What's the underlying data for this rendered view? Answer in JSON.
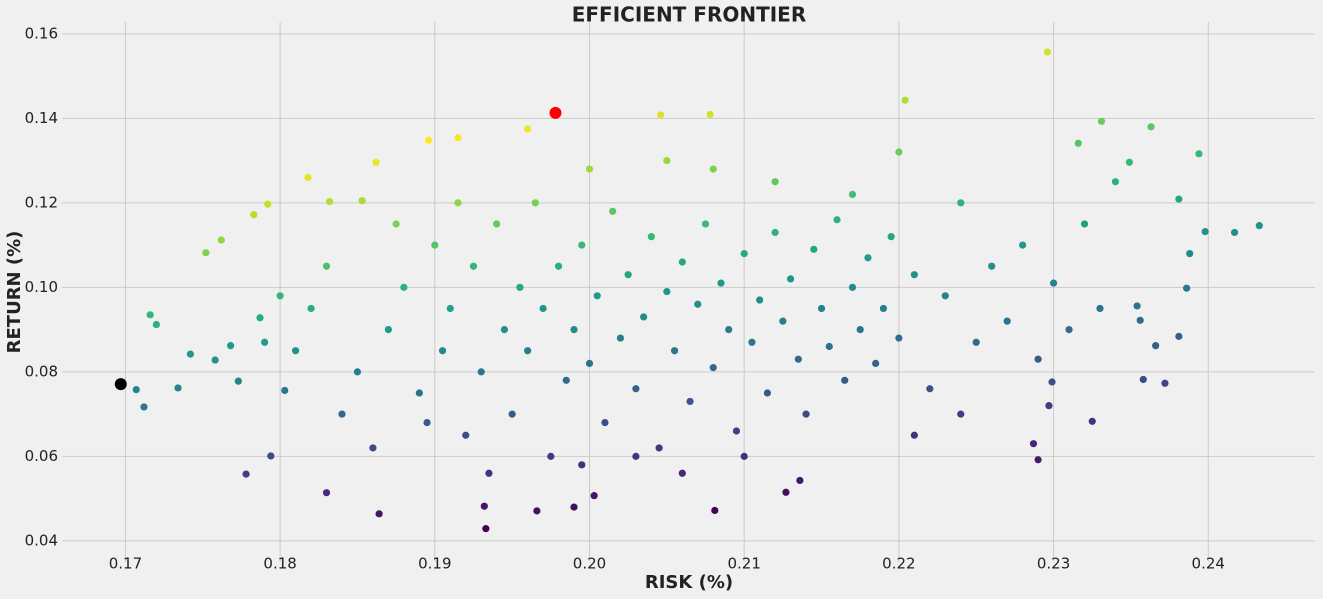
{
  "chart_data": {
    "type": "scatter",
    "title": "EFFICIENT FRONTIER",
    "x_label": "RISK (%)",
    "y_label": "RETURN (%)",
    "xlim": [
      0.1659,
      0.2469
    ],
    "ylim": [
      0.035,
      0.1628
    ],
    "xticks": [
      0.17,
      0.18,
      0.19,
      0.2,
      0.21,
      0.22,
      0.23,
      0.24
    ],
    "yticks": [
      0.04,
      0.06,
      0.08,
      0.1,
      0.12,
      0.14,
      0.16
    ],
    "xtick_labels": [
      "0.17",
      "0.18",
      "0.19",
      "0.20",
      "0.21",
      "0.22",
      "0.23",
      "0.24"
    ],
    "ytick_labels": [
      "0.04",
      "0.06",
      "0.08",
      "0.10",
      "0.12",
      "0.14",
      "0.16"
    ],
    "grid": true,
    "series": [
      {
        "colormap": "viridis",
        "x": [
          0.1707,
          0.1712,
          0.1716,
          0.172,
          0.1734,
          0.1742,
          0.1752,
          0.1758,
          0.1762,
          0.1768,
          0.1773,
          0.1778,
          0.1783,
          0.1792,
          0.1794,
          0.1787,
          0.1803,
          0.1818,
          0.183,
          0.1832,
          0.1862,
          0.1864,
          0.1853,
          0.1896,
          0.1915,
          0.1933,
          0.1932,
          0.196,
          0.1966,
          0.199,
          0.2003,
          0.2046,
          0.2078,
          0.2081,
          0.2127,
          0.2136,
          0.2204,
          0.2296,
          0.229,
          0.2287,
          0.2325,
          0.2331,
          0.2363,
          0.2394,
          0.2417,
          0.2433,
          0.2398,
          0.2381,
          0.2372,
          0.2358,
          0.2366,
          0.2381,
          0.2386,
          0.2388,
          0.2356,
          0.2354,
          0.2349,
          0.2316,
          0.2299,
          0.2297,
          0.185,
          0.187,
          0.188,
          0.189,
          0.19,
          0.1905,
          0.191,
          0.192,
          0.1925,
          0.193,
          0.194,
          0.1945,
          0.195,
          0.1955,
          0.196,
          0.1965,
          0.197,
          0.1975,
          0.198,
          0.1985,
          0.199,
          0.1995,
          0.2,
          0.2005,
          0.201,
          0.2015,
          0.202,
          0.2025,
          0.203,
          0.2035,
          0.204,
          0.2045,
          0.205,
          0.2055,
          0.206,
          0.2065,
          0.207,
          0.2075,
          0.208,
          0.2085,
          0.209,
          0.2095,
          0.21,
          0.2105,
          0.211,
          0.2115,
          0.212,
          0.2125,
          0.213,
          0.2135,
          0.214,
          0.2145,
          0.215,
          0.2155,
          0.216,
          0.2165,
          0.217,
          0.2175,
          0.218,
          0.2185,
          0.219,
          0.2195,
          0.22,
          0.221,
          0.222,
          0.223,
          0.224,
          0.225,
          0.226,
          0.227,
          0.228,
          0.229,
          0.23,
          0.231,
          0.232,
          0.233,
          0.234,
          0.181,
          0.182,
          0.183,
          0.184,
          0.18,
          0.179,
          0.186,
          0.1875,
          0.1895,
          0.1915,
          0.1935,
          0.2,
          0.205,
          0.208,
          0.212,
          0.217,
          0.221,
          0.224,
          0.22,
          0.1995,
          0.206,
          0.21,
          0.203
        ],
        "values": [
          0.0758,
          0.0717,
          0.0935,
          0.0912,
          0.0762,
          0.0842,
          0.1082,
          0.0828,
          0.1112,
          0.0862,
          0.0778,
          0.0558,
          0.1172,
          0.1197,
          0.0601,
          0.0928,
          0.0756,
          0.126,
          0.0514,
          0.1203,
          0.1296,
          0.0464,
          0.1205,
          0.1348,
          0.1354,
          0.0429,
          0.0482,
          0.1375,
          0.0471,
          0.048,
          0.0507,
          0.1408,
          0.1409,
          0.0472,
          0.0515,
          0.0543,
          0.1443,
          0.1557,
          0.0592,
          0.063,
          0.0683,
          0.1393,
          0.138,
          0.1316,
          0.113,
          0.1146,
          0.1132,
          0.1209,
          0.0773,
          0.0782,
          0.0862,
          0.0884,
          0.0998,
          0.108,
          0.0922,
          0.0956,
          0.1296,
          0.1341,
          0.0776,
          0.072,
          0.08,
          0.09,
          0.1,
          0.075,
          0.11,
          0.085,
          0.095,
          0.065,
          0.105,
          0.08,
          0.115,
          0.09,
          0.07,
          0.1,
          0.085,
          0.12,
          0.095,
          0.06,
          0.105,
          0.078,
          0.09,
          0.11,
          0.082,
          0.098,
          0.068,
          0.118,
          0.088,
          0.103,
          0.076,
          0.093,
          0.112,
          0.062,
          0.099,
          0.085,
          0.106,
          0.073,
          0.096,
          0.115,
          0.081,
          0.101,
          0.09,
          0.066,
          0.108,
          0.087,
          0.097,
          0.075,
          0.113,
          0.092,
          0.102,
          0.083,
          0.07,
          0.109,
          0.095,
          0.086,
          0.116,
          0.078,
          0.1,
          0.09,
          0.107,
          0.082,
          0.095,
          0.112,
          0.088,
          0.103,
          0.076,
          0.098,
          0.12,
          0.087,
          0.105,
          0.092,
          0.11,
          0.083,
          0.101,
          0.09,
          0.115,
          0.095,
          0.125,
          0.085,
          0.095,
          0.105,
          0.07,
          0.098,
          0.087,
          0.062,
          0.115,
          0.068,
          0.12,
          0.056,
          0.128,
          0.13,
          0.128,
          0.125,
          0.122,
          0.065,
          0.07,
          0.132,
          0.058,
          0.056,
          0.06,
          0.06
        ]
      },
      {
        "color": "#ff0000",
        "x": [
          0.1978
        ],
        "values": [
          0.1413
        ]
      },
      {
        "color": "#000000",
        "x": [
          0.1697
        ],
        "values": [
          0.0771
        ]
      }
    ]
  }
}
